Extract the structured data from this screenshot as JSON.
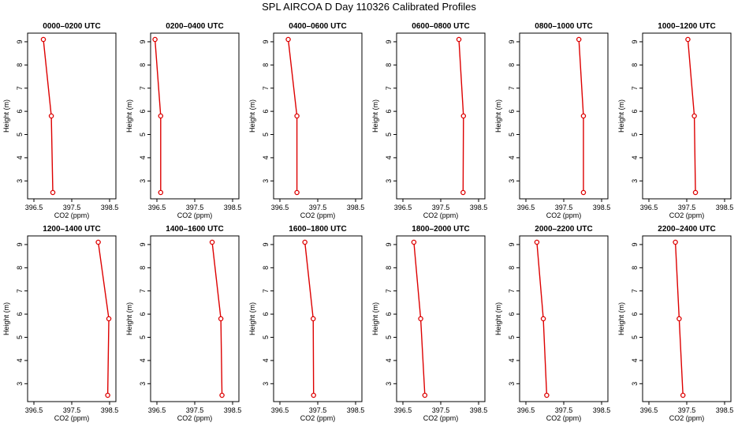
{
  "title": "SPL AIRCOA D  Day 110326  Calibrated Profiles",
  "colors": {
    "line": "#dd0000",
    "point": "#dd0000",
    "axis": "#000000"
  },
  "chart_data": [
    {
      "type": "line",
      "title": "0000–0200 UTC",
      "xlabel": "CO2 (ppm)",
      "ylabel": "Height (m)",
      "xlim": [
        396.5,
        398.5
      ],
      "ylim": [
        2.5,
        9.1
      ],
      "xticks": [
        396.5,
        397.5,
        398.5
      ],
      "xtick_labels": [
        "396.5",
        "397.5",
        "398.5"
      ],
      "yticks": [
        3,
        4,
        5,
        6,
        7,
        8,
        9
      ],
      "grid": false,
      "series": [
        {
          "x": [
            396.75,
            396.96,
            397.0
          ],
          "y": [
            9.1,
            5.8,
            2.5
          ]
        }
      ]
    },
    {
      "type": "line",
      "title": "0200–0400 UTC",
      "xlabel": "CO2 (ppm)",
      "ylabel": "Height (m)",
      "xlim": [
        396.5,
        398.5
      ],
      "ylim": [
        2.5,
        9.1
      ],
      "xticks": [
        396.5,
        397.5,
        398.5
      ],
      "xtick_labels": [
        "396.5",
        "397.5",
        "398.5"
      ],
      "yticks": [
        3,
        4,
        5,
        6,
        7,
        8,
        9
      ],
      "grid": false,
      "series": [
        {
          "x": [
            396.45,
            396.6,
            396.6
          ],
          "y": [
            9.1,
            5.8,
            2.5
          ]
        }
      ]
    },
    {
      "type": "line",
      "title": "0400–0600 UTC",
      "xlabel": "CO2 (ppm)",
      "ylabel": "Height (m)",
      "xlim": [
        396.5,
        398.5
      ],
      "ylim": [
        2.5,
        9.1
      ],
      "xticks": [
        396.5,
        397.5,
        398.5
      ],
      "xtick_labels": [
        "396.5",
        "397.5",
        "398.5"
      ],
      "yticks": [
        3,
        4,
        5,
        6,
        7,
        8,
        9
      ],
      "grid": false,
      "series": [
        {
          "x": [
            396.72,
            396.95,
            396.95
          ],
          "y": [
            9.1,
            5.8,
            2.5
          ]
        }
      ]
    },
    {
      "type": "line",
      "title": "0600–0800 UTC",
      "xlabel": "CO2 (ppm)",
      "ylabel": "Height (m)",
      "xlim": [
        396.5,
        398.5
      ],
      "ylim": [
        2.5,
        9.1
      ],
      "xticks": [
        396.5,
        397.5,
        398.5
      ],
      "xtick_labels": [
        "396.5",
        "397.5",
        "398.5"
      ],
      "yticks": [
        3,
        4,
        5,
        6,
        7,
        8,
        9
      ],
      "grid": false,
      "series": [
        {
          "x": [
            397.98,
            398.1,
            398.09
          ],
          "y": [
            9.1,
            5.8,
            2.5
          ]
        }
      ]
    },
    {
      "type": "line",
      "title": "0800–1000 UTC",
      "xlabel": "CO2 (ppm)",
      "ylabel": "Height (m)",
      "xlim": [
        396.5,
        398.5
      ],
      "ylim": [
        2.5,
        9.1
      ],
      "xticks": [
        396.5,
        397.5,
        398.5
      ],
      "xtick_labels": [
        "396.5",
        "397.5",
        "398.5"
      ],
      "yticks": [
        3,
        4,
        5,
        6,
        7,
        8,
        9
      ],
      "grid": false,
      "series": [
        {
          "x": [
            397.9,
            398.02,
            398.02
          ],
          "y": [
            9.1,
            5.8,
            2.5
          ]
        }
      ]
    },
    {
      "type": "line",
      "title": "1000–1200 UTC",
      "xlabel": "CO2 (ppm)",
      "ylabel": "Height (m)",
      "xlim": [
        396.5,
        398.5
      ],
      "ylim": [
        2.5,
        9.1
      ],
      "xticks": [
        396.5,
        397.5,
        398.5
      ],
      "xtick_labels": [
        "396.5",
        "397.5",
        "398.5"
      ],
      "yticks": [
        3,
        4,
        5,
        6,
        7,
        8,
        9
      ],
      "grid": false,
      "series": [
        {
          "x": [
            397.53,
            397.7,
            397.73
          ],
          "y": [
            9.1,
            5.8,
            2.5
          ]
        }
      ]
    },
    {
      "type": "line",
      "title": "1200–1400 UTC",
      "xlabel": "CO2 (ppm)",
      "ylabel": "Height (m)",
      "xlim": [
        396.5,
        398.5
      ],
      "ylim": [
        2.5,
        9.1
      ],
      "xticks": [
        396.5,
        397.5,
        398.5
      ],
      "xtick_labels": [
        "396.5",
        "397.5",
        "398.5"
      ],
      "yticks": [
        3,
        4,
        5,
        6,
        7,
        8,
        9
      ],
      "grid": false,
      "series": [
        {
          "x": [
            398.2,
            398.48,
            398.45
          ],
          "y": [
            9.1,
            5.8,
            2.5
          ]
        }
      ]
    },
    {
      "type": "line",
      "title": "1400–1600 UTC",
      "xlabel": "CO2 (ppm)",
      "ylabel": "Height (m)",
      "xlim": [
        396.5,
        398.5
      ],
      "ylim": [
        2.5,
        9.1
      ],
      "xticks": [
        396.5,
        397.5,
        398.5
      ],
      "xtick_labels": [
        "396.5",
        "397.5",
        "398.5"
      ],
      "yticks": [
        3,
        4,
        5,
        6,
        7,
        8,
        9
      ],
      "grid": false,
      "series": [
        {
          "x": [
            397.96,
            398.19,
            398.22
          ],
          "y": [
            9.1,
            5.8,
            2.5
          ]
        }
      ]
    },
    {
      "type": "line",
      "title": "1600–1800 UTC",
      "xlabel": "CO2 (ppm)",
      "ylabel": "Height (m)",
      "xlim": [
        396.5,
        398.5
      ],
      "ylim": [
        2.5,
        9.1
      ],
      "xticks": [
        396.5,
        397.5,
        398.5
      ],
      "xtick_labels": [
        "396.5",
        "397.5",
        "398.5"
      ],
      "yticks": [
        3,
        4,
        5,
        6,
        7,
        8,
        9
      ],
      "grid": false,
      "series": [
        {
          "x": [
            397.16,
            397.38,
            397.39
          ],
          "y": [
            9.1,
            5.8,
            2.5
          ]
        }
      ]
    },
    {
      "type": "line",
      "title": "1800–2000 UTC",
      "xlabel": "CO2 (ppm)",
      "ylabel": "Height (m)",
      "xlim": [
        396.5,
        398.5
      ],
      "ylim": [
        2.5,
        9.1
      ],
      "xticks": [
        396.5,
        397.5,
        398.5
      ],
      "xtick_labels": [
        "396.5",
        "397.5",
        "398.5"
      ],
      "yticks": [
        3,
        4,
        5,
        6,
        7,
        8,
        9
      ],
      "grid": false,
      "series": [
        {
          "x": [
            396.79,
            396.97,
            397.08
          ],
          "y": [
            9.1,
            5.8,
            2.5
          ]
        }
      ]
    },
    {
      "type": "line",
      "title": "2000–2200 UTC",
      "xlabel": "CO2 (ppm)",
      "ylabel": "Height (m)",
      "xlim": [
        396.5,
        398.5
      ],
      "ylim": [
        2.5,
        9.1
      ],
      "xticks": [
        396.5,
        397.5,
        398.5
      ],
      "xtick_labels": [
        "396.5",
        "397.5",
        "398.5"
      ],
      "yticks": [
        3,
        4,
        5,
        6,
        7,
        8,
        9
      ],
      "grid": false,
      "series": [
        {
          "x": [
            396.79,
            396.96,
            397.05
          ],
          "y": [
            9.1,
            5.8,
            2.5
          ]
        }
      ]
    },
    {
      "type": "line",
      "title": "2200–2400 UTC",
      "xlabel": "CO2 (ppm)",
      "ylabel": "Height (m)",
      "xlim": [
        396.5,
        398.5
      ],
      "ylim": [
        2.5,
        9.1
      ],
      "xticks": [
        396.5,
        397.5,
        398.5
      ],
      "xtick_labels": [
        "396.5",
        "397.5",
        "398.5"
      ],
      "yticks": [
        3,
        4,
        5,
        6,
        7,
        8,
        9
      ],
      "grid": false,
      "series": [
        {
          "x": [
            397.2,
            397.3,
            397.4
          ],
          "y": [
            9.1,
            5.8,
            2.5
          ]
        }
      ]
    }
  ]
}
